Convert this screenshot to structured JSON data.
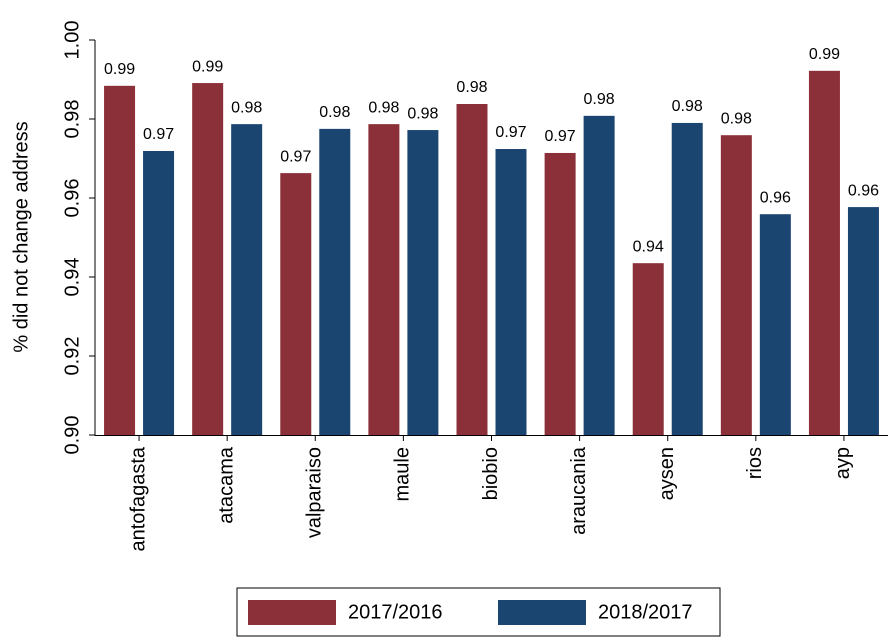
{
  "chart_data": {
    "type": "bar",
    "y_label": "% did not change address",
    "categories": [
      "antofagasta",
      "atacama",
      "valparaiso",
      "maule",
      "biobio",
      "araucania",
      "aysen",
      "rios",
      "ayp"
    ],
    "series": [
      {
        "name": "2017/2016",
        "color": "#8b3039",
        "values": [
          0.9884,
          0.9891,
          0.9663,
          0.9787,
          0.9838,
          0.9714,
          0.9435,
          0.9759,
          0.9922
        ],
        "value_labels": [
          "0.99",
          "0.99",
          "0.97",
          "0.98",
          "0.98",
          "0.97",
          "0.94",
          "0.98",
          "0.99"
        ]
      },
      {
        "name": "2018/2017",
        "color": "#1a4570",
        "values": [
          0.9719,
          0.9787,
          0.9775,
          0.9772,
          0.9724,
          0.9808,
          0.979,
          0.9559,
          0.9577
        ],
        "value_labels": [
          "0.97",
          "0.98",
          "0.98",
          "0.98",
          "0.97",
          "0.98",
          "0.98",
          "0.96",
          "0.96"
        ]
      }
    ],
    "ylim": [
      0.9,
      1.0
    ],
    "yticks": [
      {
        "value": 0.9,
        "label": "0.90"
      },
      0.92,
      0.94,
      0.96,
      0.98,
      {
        "value": 1.0,
        "label": "1.00"
      }
    ],
    "grid": false,
    "legend": "bottom"
  }
}
